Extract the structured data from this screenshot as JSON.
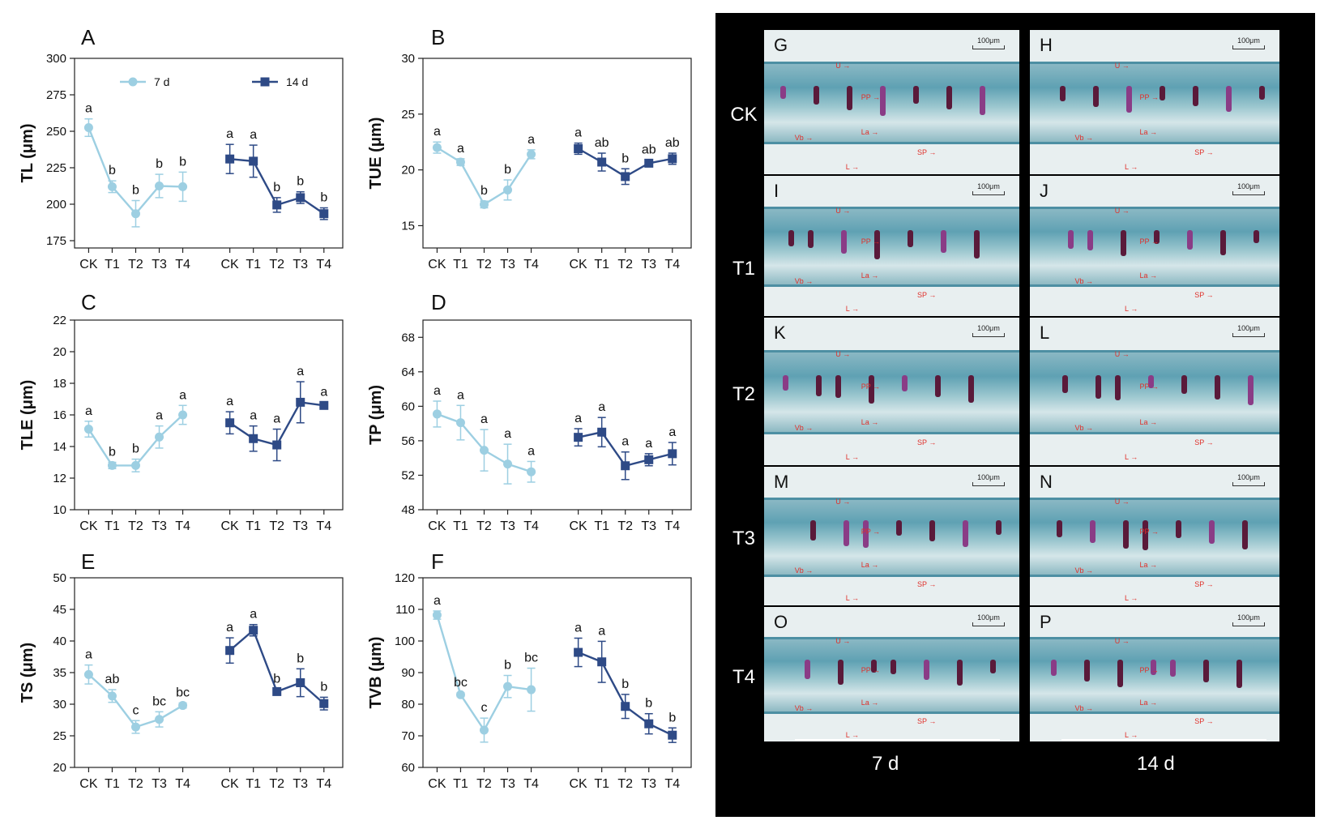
{
  "legend": {
    "series7": "7 d",
    "series14": "14 d"
  },
  "micrographs": {
    "row_labels": [
      "CK",
      "T1",
      "T2",
      "T3",
      "T4"
    ],
    "panels": [
      "G",
      "H",
      "I",
      "J",
      "K",
      "L",
      "M",
      "N",
      "O",
      "P"
    ],
    "column_labels": [
      "7 d",
      "14 d"
    ],
    "scale_bar": "100μm",
    "annotations": {
      "U": "U",
      "PP": "PP",
      "Vb": "Vb",
      "La": "La",
      "SP": "SP",
      "L": "L"
    }
  },
  "chart_data": [
    {
      "type": "line",
      "panel": "A",
      "ylabel": "TL (μm)",
      "ylim": [
        170,
        300
      ],
      "yticks": [
        175,
        200,
        225,
        250,
        275,
        300
      ],
      "categories": [
        "CK",
        "T1",
        "T2",
        "T3",
        "T4"
      ],
      "series": [
        {
          "name": "7 d",
          "values": [
            252.5,
            212.0,
            193.5,
            212.5,
            212.0
          ],
          "errors": [
            6,
            4,
            9,
            8,
            10
          ],
          "letters": [
            "a",
            "b",
            "b",
            "b",
            "b"
          ]
        },
        {
          "name": "14 d",
          "values": [
            231.0,
            229.5,
            199.5,
            204.5,
            193.5
          ],
          "errors": [
            10,
            11,
            5,
            4,
            4
          ],
          "letters": [
            "a",
            "a",
            "b",
            "b",
            "b"
          ]
        }
      ]
    },
    {
      "type": "line",
      "panel": "B",
      "ylabel": "TUE (μm)",
      "ylim": [
        13,
        30
      ],
      "yticks": [
        15,
        20,
        25,
        30
      ],
      "categories": [
        "CK",
        "T1",
        "T2",
        "T3",
        "T4"
      ],
      "series": [
        {
          "name": "7 d",
          "values": [
            22.0,
            20.7,
            16.9,
            18.2,
            21.4
          ],
          "errors": [
            0.5,
            0.3,
            0.3,
            0.9,
            0.4
          ],
          "letters": [
            "a",
            "a",
            "b",
            "b",
            "a"
          ]
        },
        {
          "name": "14 d",
          "values": [
            21.9,
            20.7,
            19.4,
            20.6,
            21.0
          ],
          "errors": [
            0.5,
            0.8,
            0.7,
            0.3,
            0.5
          ],
          "letters": [
            "a",
            "ab",
            "b",
            "ab",
            "ab"
          ]
        }
      ]
    },
    {
      "type": "line",
      "panel": "C",
      "ylabel": "TLE (μm)",
      "ylim": [
        10,
        22
      ],
      "yticks": [
        10,
        12,
        14,
        16,
        18,
        20,
        22
      ],
      "categories": [
        "CK",
        "T1",
        "T2",
        "T3",
        "T4"
      ],
      "series": [
        {
          "name": "7 d",
          "values": [
            15.1,
            12.8,
            12.8,
            14.6,
            16.0
          ],
          "errors": [
            0.5,
            0.2,
            0.4,
            0.7,
            0.6
          ],
          "letters": [
            "a",
            "b",
            "b",
            "a",
            "a"
          ]
        },
        {
          "name": "14 d",
          "values": [
            15.5,
            14.5,
            14.1,
            16.8,
            16.6
          ],
          "errors": [
            0.7,
            0.8,
            1.0,
            1.3,
            0.2
          ],
          "letters": [
            "a",
            "a",
            "a",
            "a",
            "a"
          ]
        }
      ]
    },
    {
      "type": "line",
      "panel": "D",
      "ylabel": "TP (μm)",
      "ylim": [
        48,
        70
      ],
      "yticks": [
        48,
        52,
        56,
        60,
        64,
        68
      ],
      "categories": [
        "CK",
        "T1",
        "T2",
        "T3",
        "T4"
      ],
      "series": [
        {
          "name": "7 d",
          "values": [
            59.1,
            58.1,
            54.9,
            53.3,
            52.4
          ],
          "errors": [
            1.5,
            2.0,
            2.4,
            2.3,
            1.2
          ],
          "letters": [
            "a",
            "a",
            "a",
            "a",
            "a"
          ]
        },
        {
          "name": "14 d",
          "values": [
            56.4,
            57.0,
            53.1,
            53.8,
            54.5
          ],
          "errors": [
            1.0,
            1.7,
            1.6,
            0.7,
            1.3
          ],
          "letters": [
            "a",
            "a",
            "a",
            "a",
            "a"
          ]
        }
      ]
    },
    {
      "type": "line",
      "panel": "E",
      "ylabel": "TS (μm)",
      "ylim": [
        20,
        50
      ],
      "yticks": [
        20,
        25,
        30,
        35,
        40,
        45,
        50
      ],
      "categories": [
        "CK",
        "T1",
        "T2",
        "T3",
        "T4"
      ],
      "series": [
        {
          "name": "7 d",
          "values": [
            34.7,
            31.3,
            26.4,
            27.6,
            29.8
          ],
          "errors": [
            1.5,
            1.0,
            1.0,
            1.2,
            0.4
          ],
          "letters": [
            "a",
            "ab",
            "c",
            "bc",
            "bc"
          ]
        },
        {
          "name": "14 d",
          "values": [
            38.5,
            41.7,
            32.0,
            33.4,
            30.1
          ],
          "errors": [
            2.0,
            0.9,
            0.4,
            2.2,
            1.0
          ],
          "letters": [
            "a",
            "a",
            "b",
            "b",
            "b"
          ]
        }
      ]
    },
    {
      "type": "line",
      "panel": "F",
      "ylabel": "TVB (μm)",
      "ylim": [
        60,
        120
      ],
      "yticks": [
        60,
        70,
        80,
        90,
        100,
        110,
        120
      ],
      "categories": [
        "CK",
        "T1",
        "T2",
        "T3",
        "T4"
      ],
      "series": [
        {
          "name": "7 d",
          "values": [
            108.2,
            83.0,
            71.8,
            85.6,
            84.6
          ],
          "errors": [
            1.3,
            0.6,
            3.8,
            3.5,
            6.8
          ],
          "letters": [
            "a",
            "bc",
            "c",
            "b",
            "bc"
          ]
        },
        {
          "name": "14 d",
          "values": [
            96.4,
            93.4,
            79.3,
            73.8,
            70.2
          ],
          "errors": [
            4.5,
            6.5,
            3.8,
            3.2,
            2.3
          ],
          "letters": [
            "a",
            "a",
            "b",
            "b",
            "b"
          ]
        }
      ]
    }
  ]
}
